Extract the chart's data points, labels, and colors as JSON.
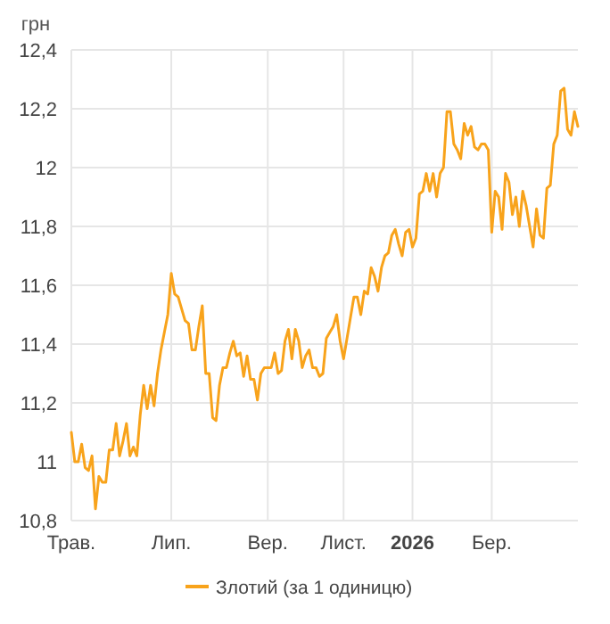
{
  "chart_data": {
    "type": "line",
    "ylabel": "грн",
    "legend": "bottom",
    "grid": true,
    "line_style": "solid",
    "marker": "none",
    "categories": [
      "Трав.",
      null,
      null,
      null,
      null,
      null,
      null,
      null,
      null,
      null,
      null,
      null,
      null,
      null,
      null,
      null,
      null,
      null,
      null,
      null,
      null,
      null,
      null,
      null,
      null,
      null,
      null,
      null,
      null,
      "Лип.",
      null,
      null,
      null,
      null,
      null,
      null,
      null,
      null,
      null,
      null,
      null,
      null,
      null,
      null,
      null,
      null,
      null,
      null,
      null,
      null,
      null,
      null,
      null,
      null,
      null,
      null,
      null,
      "Вер.",
      null,
      null,
      null,
      null,
      null,
      null,
      null,
      null,
      null,
      null,
      null,
      null,
      null,
      null,
      null,
      null,
      null,
      null,
      null,
      null,
      null,
      "Лист.",
      null,
      null,
      null,
      null,
      null,
      null,
      null,
      null,
      null,
      null,
      null,
      null,
      null,
      null,
      null,
      null,
      null,
      null,
      null,
      "2026",
      null,
      null,
      null,
      null,
      null,
      null,
      null,
      null,
      null,
      null,
      null,
      null,
      null,
      null,
      null,
      null,
      null,
      null,
      null,
      null,
      null,
      null,
      "Бер.",
      null,
      null,
      null,
      null,
      null,
      null,
      null,
      null,
      null,
      null,
      null,
      null,
      null,
      null,
      null,
      null,
      null,
      null,
      null,
      null,
      null,
      null,
      null,
      null,
      null
    ],
    "ylim": [
      10.8,
      12.4
    ],
    "yticks": [
      {
        "value": 10.8,
        "label": "10,8"
      },
      {
        "value": 11,
        "label": "11"
      },
      {
        "value": 11.2,
        "label": "11,2"
      },
      {
        "value": 11.4,
        "label": "11,4"
      },
      {
        "value": 11.6,
        "label": "11,6"
      },
      {
        "value": 11.8,
        "label": "11,8"
      },
      {
        "value": 12,
        "label": "12"
      },
      {
        "value": 12.2,
        "label": "12,2"
      },
      {
        "value": 12.4,
        "label": "12,4"
      }
    ],
    "series": [
      {
        "name": "Злотий (за 1 одиницю)",
        "color": "#f8a31b",
        "values": [
          11.1,
          11.0,
          11.0,
          11.06,
          10.98,
          10.97,
          11.02,
          10.84,
          10.95,
          10.93,
          10.93,
          11.04,
          11.04,
          11.13,
          11.02,
          11.07,
          11.13,
          11.02,
          11.05,
          11.02,
          11.16,
          11.26,
          11.18,
          11.26,
          11.19,
          11.3,
          11.38,
          11.44,
          11.5,
          11.64,
          11.57,
          11.56,
          11.52,
          11.48,
          11.47,
          11.38,
          11.38,
          11.46,
          11.53,
          11.3,
          11.3,
          11.15,
          11.14,
          11.26,
          11.32,
          11.32,
          11.37,
          11.41,
          11.36,
          11.37,
          11.29,
          11.36,
          11.28,
          11.28,
          11.21,
          11.3,
          11.32,
          11.32,
          11.32,
          11.37,
          11.3,
          11.31,
          11.41,
          11.45,
          11.35,
          11.45,
          11.41,
          11.32,
          11.36,
          11.38,
          11.32,
          11.32,
          11.29,
          11.3,
          11.42,
          11.44,
          11.46,
          11.5,
          11.41,
          11.35,
          11.42,
          11.49,
          11.56,
          11.56,
          11.5,
          11.58,
          11.57,
          11.66,
          11.63,
          11.58,
          11.66,
          11.7,
          11.71,
          11.77,
          11.79,
          11.74,
          11.7,
          11.78,
          11.79,
          11.73,
          11.76,
          11.91,
          11.92,
          11.98,
          11.92,
          11.98,
          11.9,
          11.98,
          12.0,
          12.19,
          12.19,
          12.08,
          12.06,
          12.03,
          12.15,
          12.11,
          12.14,
          12.07,
          12.06,
          12.08,
          12.08,
          12.06,
          11.78,
          11.92,
          11.9,
          11.79,
          11.98,
          11.95,
          11.84,
          11.9,
          11.8,
          11.92,
          11.87,
          11.8,
          11.73,
          11.86,
          11.77,
          11.76,
          11.93,
          11.94,
          12.08,
          12.11,
          12.26,
          12.27,
          12.13,
          12.11,
          12.19,
          12.14
        ]
      }
    ]
  }
}
